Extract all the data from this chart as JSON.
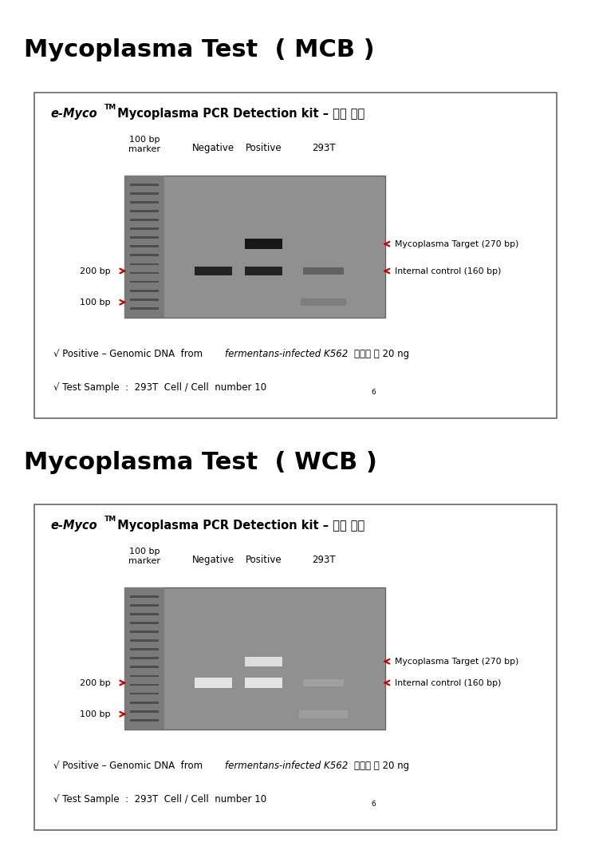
{
  "title_mcb": "Mycoplasma Test  ( MCB )",
  "title_wcb": "Mycoplasma Test  ( WCB )",
  "col_labels": [
    "Negative",
    "Positive",
    "293T"
  ],
  "right_label1": "Mycoplasma Target (270 bp)",
  "right_label2": "Internal control (160 bp)",
  "footnote1_pre": "√ Positive – Genomic DNA  from ",
  "footnote1_italic": "fermentans-infected K562",
  "footnote1_post": "  :  사용한 양 20 ng",
  "footnote2_pre": "√ Test Sample  :  293T  Cell / Cell  number 10",
  "footnote2_super": "6",
  "bg_color": "#ffffff",
  "arrow_color": "#cc0000",
  "title_fontsize": 22,
  "panel_fontsize": 10.5
}
